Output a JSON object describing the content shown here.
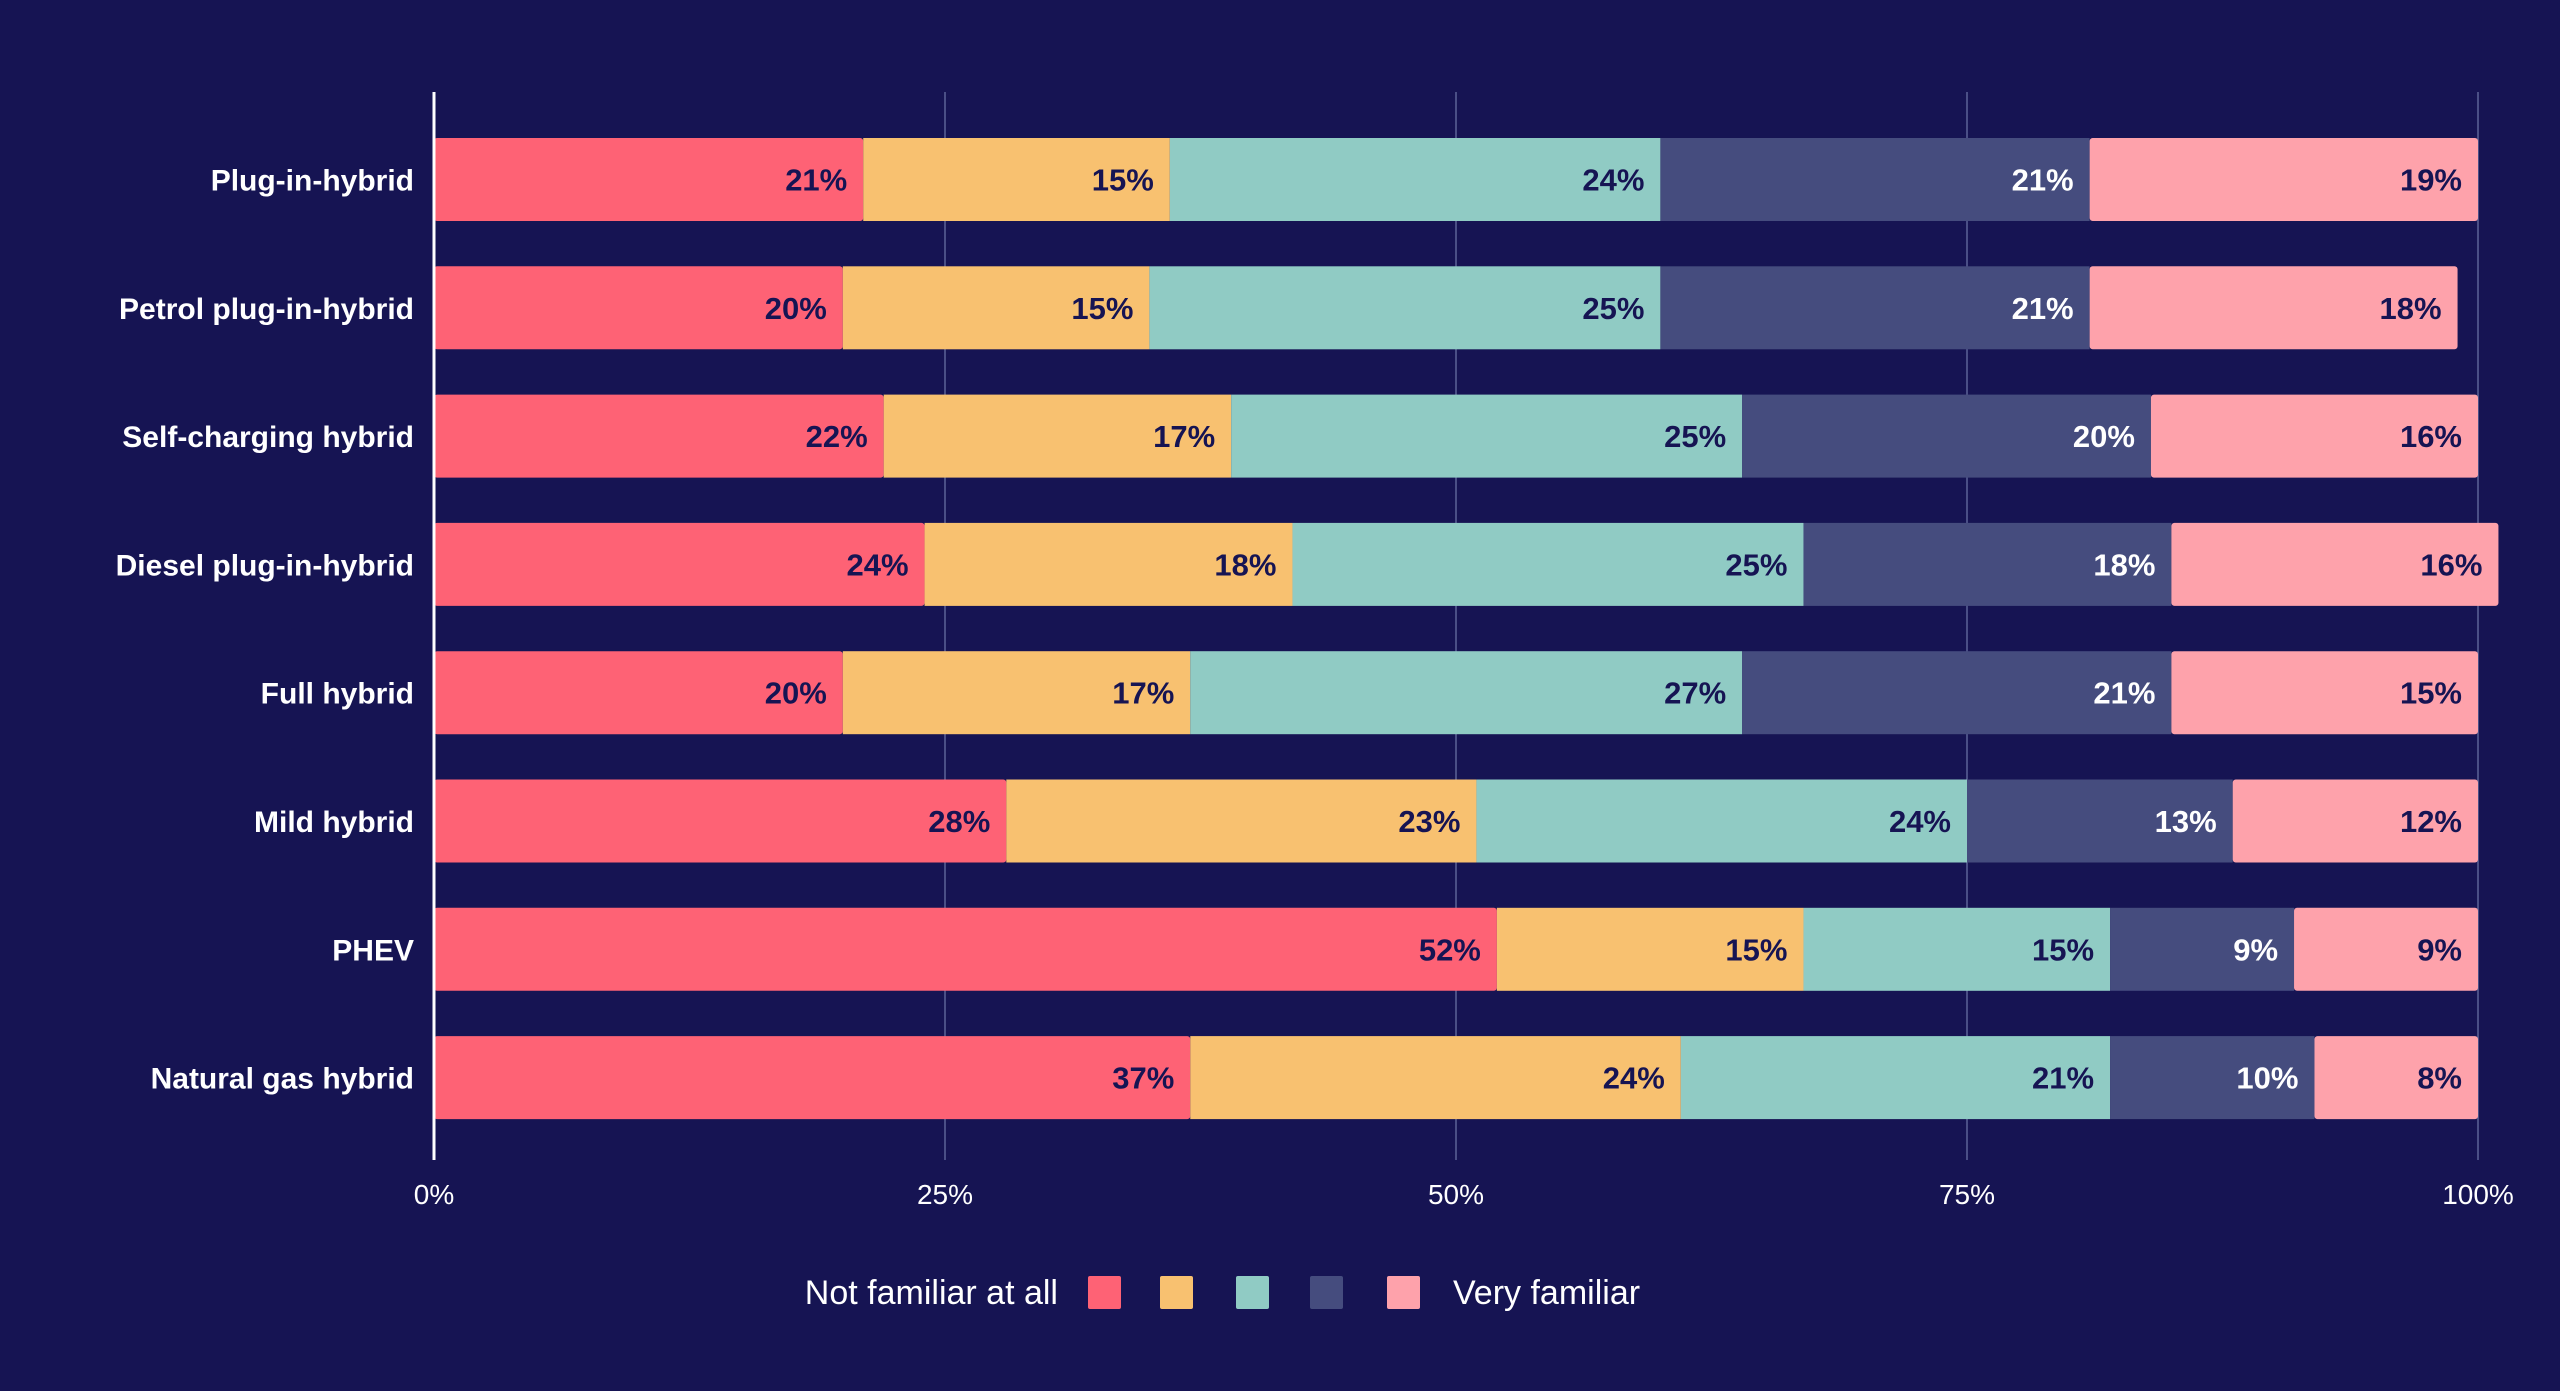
{
  "colors": {
    "background": "#161453",
    "grid": "#4a4f86",
    "axis": "#ffffff",
    "text_light": "#ffffff",
    "text_dark": "#161453",
    "segments": [
      "#fe6275",
      "#f8c170",
      "#90cbc4",
      "#454c7e",
      "#fea2ab"
    ]
  },
  "chart_data": {
    "type": "bar",
    "orientation": "horizontal",
    "stacked": true,
    "title": "",
    "xlabel": "",
    "ylabel": "",
    "xlim": [
      0,
      100
    ],
    "grid": true,
    "legend_position": "bottom",
    "x_ticks": [
      "0%",
      "25%",
      "50%",
      "75%",
      "100%"
    ],
    "x_tick_values": [
      0,
      25,
      50,
      75,
      100
    ],
    "categories": [
      "Plug-in-hybrid",
      "Petrol plug-in-hybrid",
      "Self-charging hybrid",
      "Diesel plug-in-hybrid",
      "Full hybrid",
      "Mild hybrid",
      "PHEV",
      "Natural gas hybrid"
    ],
    "series": [
      {
        "name": "Not familiar at all",
        "values": [
          21,
          20,
          22,
          24,
          20,
          28,
          52,
          37
        ]
      },
      {
        "name": "",
        "values": [
          15,
          15,
          17,
          18,
          17,
          23,
          15,
          24
        ]
      },
      {
        "name": "",
        "values": [
          24,
          25,
          25,
          25,
          27,
          24,
          15,
          21
        ]
      },
      {
        "name": "",
        "values": [
          21,
          21,
          20,
          18,
          21,
          13,
          9,
          10
        ]
      },
      {
        "name": "Very familiar",
        "values": [
          19,
          18,
          16,
          16,
          15,
          12,
          9,
          8
        ]
      }
    ],
    "legend": {
      "left_label": "Not familiar at all",
      "right_label": "Very familiar"
    }
  }
}
